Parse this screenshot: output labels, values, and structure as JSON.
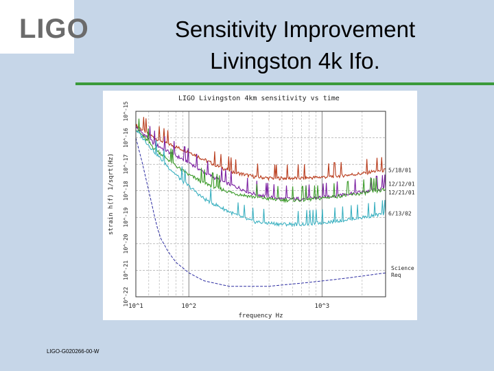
{
  "header": {
    "logo_text": "LIGO",
    "title_line1": "Sensitivity Improvement",
    "title_line2": "Livingston 4k Ifo."
  },
  "footer": {
    "doc_id": "LIGO-G020266-00-W"
  },
  "colors": {
    "background": "#c6d6e8",
    "rule": "#3a9a3a",
    "s1": "#b83a1a",
    "s2": "#7a1ea0",
    "s3": "#3a9a28",
    "s4": "#3ab0c0",
    "science": "#2a2aa0"
  },
  "chart_data": {
    "type": "line",
    "title": "LIGO Livingston 4km sensitivity vs time",
    "xlabel": "frequency Hz",
    "ylabel": "strain h(f) 1/sqrt(Hz)",
    "x_scale": "log",
    "y_scale": "log",
    "xlim": [
      40,
      3000
    ],
    "ylim": [
      1e-22,
      1e-15
    ],
    "x_ticks": [
      {
        "value": 100,
        "label": "10^2"
      },
      {
        "value": 1000,
        "label": "10^3"
      }
    ],
    "x_tick_corner_label": "10^1",
    "y_ticks": [
      {
        "value": 1e-22,
        "label": "10^-22"
      },
      {
        "value": 1e-21,
        "label": "10^-21"
      },
      {
        "value": 1e-20,
        "label": "10^-20"
      },
      {
        "value": 1e-19,
        "label": "10^-19"
      },
      {
        "value": 1e-18,
        "label": "10^-18"
      },
      {
        "value": 1e-17,
        "label": "10^-17"
      },
      {
        "value": 1e-16,
        "label": "10^-16"
      },
      {
        "value": 1e-15,
        "label": "10^-15"
      }
    ],
    "grid": true,
    "legend": "right-edge labels",
    "series": [
      {
        "name": "5/18/01",
        "color": "#b83a1a",
        "x": [
          40,
          45,
          55,
          70,
          85,
          100,
          130,
          170,
          220,
          300,
          400,
          500,
          700,
          900,
          1200,
          1600,
          2000,
          2500,
          3000
        ],
        "y": [
          3e-16,
          2e-16,
          1e-16,
          6e-17,
          4e-17,
          3e-17,
          1.5e-17,
          8e-18,
          5e-18,
          3.5e-18,
          3e-18,
          3e-18,
          3e-18,
          3.2e-18,
          3.5e-18,
          4e-18,
          4.5e-18,
          5.5e-18,
          6e-18
        ]
      },
      {
        "name": "12/12/01",
        "color": "#7a1ea0",
        "x": [
          40,
          45,
          55,
          70,
          85,
          100,
          130,
          170,
          220,
          300,
          400,
          500,
          700,
          900,
          1200,
          1600,
          2000,
          2500,
          3000
        ],
        "y": [
          2.5e-16,
          1.5e-16,
          6e-17,
          3e-17,
          1.8e-17,
          1.2e-17,
          5e-18,
          2.5e-18,
          1.5e-18,
          8e-19,
          6e-19,
          5e-19,
          5e-19,
          5.5e-19,
          6.5e-19,
          8e-19,
          9e-19,
          1.1e-18,
          1.3e-18
        ]
      },
      {
        "name": "12/21/01",
        "color": "#3a9a28",
        "x": [
          40,
          45,
          55,
          70,
          85,
          100,
          130,
          170,
          220,
          300,
          400,
          500,
          700,
          900,
          1200,
          1600,
          2000,
          2500,
          3000
        ],
        "y": [
          2.2e-16,
          1.2e-16,
          4e-17,
          1.5e-17,
          7e-18,
          4e-18,
          2e-18,
          1.2e-18,
          8e-19,
          6e-19,
          5e-19,
          4.5e-19,
          4.5e-19,
          5e-19,
          6e-19,
          7e-19,
          8e-19,
          9.5e-19,
          1.1e-18
        ]
      },
      {
        "name": "6/13/02",
        "color": "#3ab0c0",
        "x": [
          40,
          45,
          55,
          70,
          85,
          100,
          130,
          170,
          220,
          300,
          400,
          500,
          700,
          900,
          1200,
          1600,
          2000,
          2500,
          3000
        ],
        "y": [
          2e-16,
          1e-16,
          3e-17,
          8e-18,
          3e-18,
          1.5e-18,
          5e-19,
          2.5e-19,
          1.3e-19,
          7e-20,
          6e-20,
          5.5e-20,
          5.5e-20,
          6e-20,
          7e-20,
          8.5e-20,
          1e-19,
          1.2e-19,
          1.4e-19
        ]
      },
      {
        "name": "Science Req",
        "color": "#2a2aa0",
        "x": [
          40,
          45,
          50,
          55,
          60,
          70,
          80,
          100,
          130,
          200,
          400,
          800,
          1500,
          3000
        ],
        "y": [
          1e-16,
          1e-17,
          1e-18,
          1.2e-19,
          2e-20,
          5e-21,
          2e-21,
          8e-22,
          4e-22,
          2.5e-22,
          2.5e-22,
          3.5e-22,
          5e-22,
          8e-22
        ]
      }
    ]
  }
}
